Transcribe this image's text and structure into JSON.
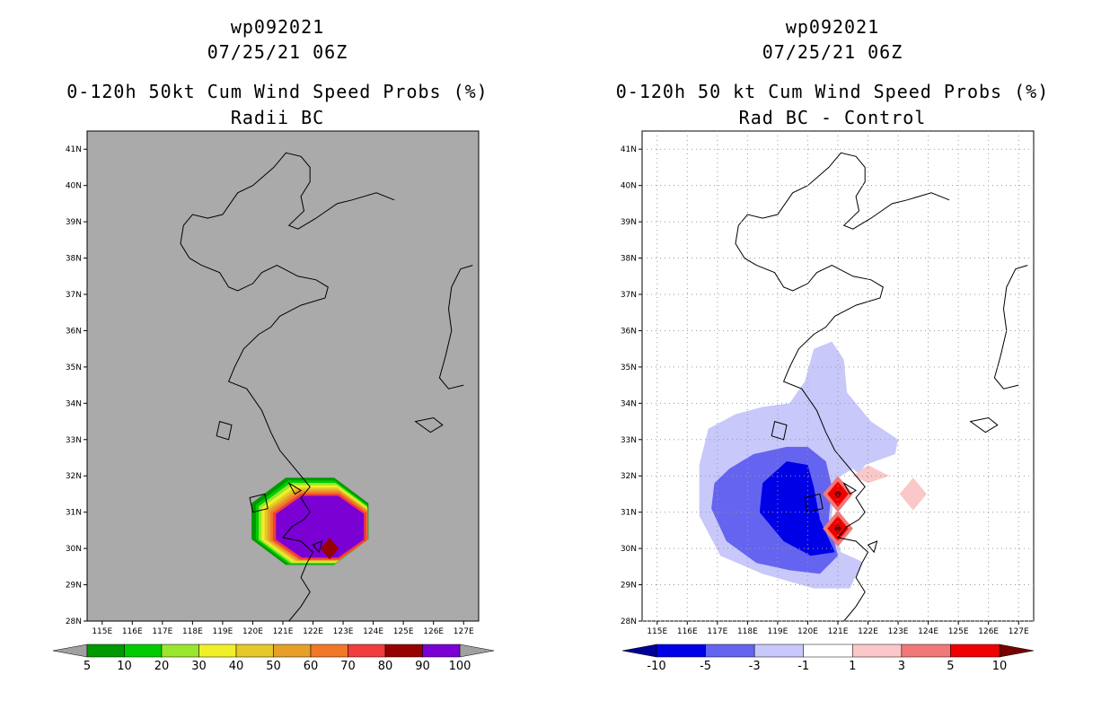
{
  "left": {
    "title_line1": "wp092021",
    "title_line2": "07/25/21 06Z",
    "title_line3": "0-120h 50kt Cum Wind Speed Probs (%)",
    "title_line4": "Radii BC"
  },
  "right": {
    "title_line1": "wp092021",
    "title_line2": "07/25/21 06Z",
    "title_line3": "0-120h 50 kt Cum Wind Speed Probs (%)",
    "title_line4": "Rad BC - Control"
  },
  "chart_data": [
    {
      "type": "heatmap",
      "title": "0-120h 50kt Cum Wind Speed Probs (%) — Radii BC",
      "xlim": [
        114.5,
        127.5
      ],
      "ylim": [
        28,
        41.5
      ],
      "x_ticks": [
        "115E",
        "116E",
        "117E",
        "118E",
        "119E",
        "120E",
        "121E",
        "122E",
        "123E",
        "124E",
        "125E",
        "126E",
        "127E"
      ],
      "y_ticks": [
        "28N",
        "29N",
        "30N",
        "31N",
        "32N",
        "33N",
        "34N",
        "35N",
        "36N",
        "37N",
        "38N",
        "39N",
        "40N",
        "41N"
      ],
      "colorbar_labels": [
        "5",
        "10",
        "20",
        "30",
        "40",
        "50",
        "60",
        "70",
        "80",
        "90",
        "100"
      ],
      "colorbar_colors": [
        "#009900",
        "#00cc00",
        "#99e62e",
        "#f0f028",
        "#e6c828",
        "#e6a028",
        "#f07828",
        "#f03c3c",
        "#960000",
        "#7a00d4"
      ],
      "colorbar_under": "#a0a0a0",
      "colorbar_over": "#a0a0a0",
      "background": "#aaaaaa",
      "max_region": {
        "center_lon": 122.2,
        "center_lat": 30.6,
        "max_value": 100
      }
    },
    {
      "type": "heatmap",
      "title": "0-120h 50 kt Cum Wind Speed Probs (%) — Rad BC - Control",
      "xlim": [
        114.5,
        127.5
      ],
      "ylim": [
        28,
        41.5
      ],
      "x_ticks": [
        "115E",
        "116E",
        "117E",
        "118E",
        "119E",
        "120E",
        "121E",
        "122E",
        "123E",
        "124E",
        "125E",
        "126E",
        "127E"
      ],
      "y_ticks": [
        "28N",
        "29N",
        "30N",
        "31N",
        "32N",
        "33N",
        "34N",
        "35N",
        "36N",
        "37N",
        "38N",
        "39N",
        "40N",
        "41N"
      ],
      "colorbar_labels": [
        "-10",
        "-5",
        "-3",
        "-1",
        "1",
        "3",
        "5",
        "10"
      ],
      "colorbar_colors": [
        "#0000e6",
        "#6464f0",
        "#c8c8fa",
        "#ffffff",
        "#fac8c8",
        "#f07878",
        "#f00000"
      ],
      "colorbar_under": "#000096",
      "colorbar_over": "#780000",
      "grid": "dotted",
      "max_region": {
        "center_lon": 119.7,
        "center_lat": 31.0,
        "min_value": -10
      }
    }
  ]
}
